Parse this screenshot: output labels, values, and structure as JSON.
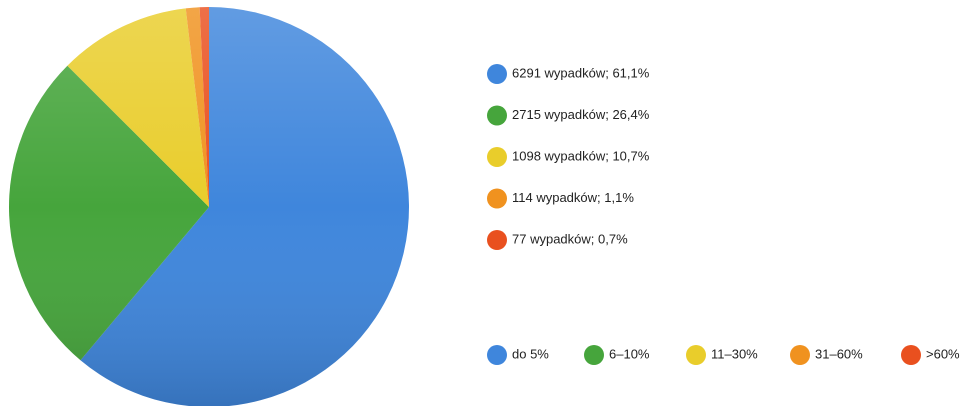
{
  "chart_data": {
    "type": "pie",
    "categories": [
      "do 5%",
      "6–10%",
      "11–30%",
      "31–60%",
      ">60%"
    ],
    "values": [
      6291,
      2715,
      1098,
      114,
      77
    ],
    "value_labels": [
      "6291 wypadków; 61,1%",
      "2715 wypadków; 26,4%",
      "1098 wypadków; 10,7%",
      "114 wypadków; 1,1%",
      "77 wypadków; 0,7%"
    ],
    "colors": [
      "#3f86dc",
      "#46a53c",
      "#e9cd2b",
      "#f0921f",
      "#e9501f"
    ]
  }
}
